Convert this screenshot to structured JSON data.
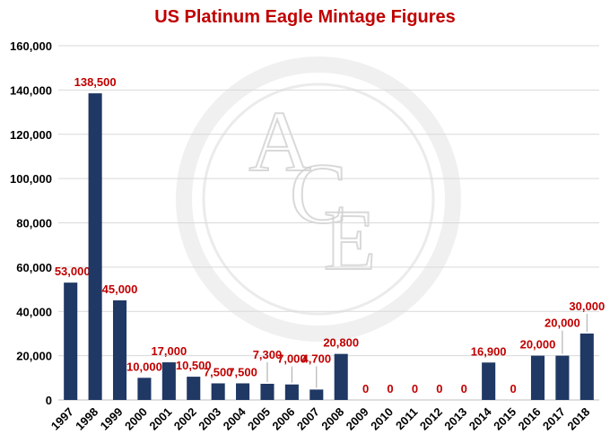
{
  "colors": {
    "bar": "#1f3864",
    "label": "#c00000",
    "title": "#c00000",
    "axis_text": "#000000",
    "grid": "#d9d9d9",
    "watermark": "#e3e3e3"
  },
  "watermark": {
    "text": "ACE"
  },
  "chart_data": {
    "type": "bar",
    "title": "US Platinum Eagle Mintage Figures",
    "xlabel": "",
    "ylabel": "",
    "ylim": [
      0,
      160000
    ],
    "yticks": [
      0,
      20000,
      40000,
      60000,
      80000,
      100000,
      120000,
      140000,
      160000
    ],
    "ytick_labels": [
      "0",
      "20,000",
      "40,000",
      "60,000",
      "80,000",
      "100,000",
      "120,000",
      "140,000",
      "160,000"
    ],
    "grid": true,
    "legend": "none",
    "categories": [
      "1997",
      "1998",
      "1999",
      "2000",
      "2001",
      "2002",
      "2003",
      "2004",
      "2005",
      "2006",
      "2007",
      "2008",
      "2009",
      "2010",
      "2011",
      "2012",
      "2013",
      "2014",
      "2015",
      "2016",
      "2017",
      "2018"
    ],
    "values": [
      53000,
      138500,
      45000,
      10000,
      17000,
      10500,
      7500,
      7500,
      7300,
      7000,
      4700,
      20800,
      0,
      0,
      0,
      0,
      0,
      16900,
      0,
      20000,
      20000,
      30000
    ],
    "data_labels": [
      "53,000",
      "138,500",
      "45,000",
      "10,000",
      "17,000",
      "10,500",
      "7,500",
      "7,500",
      "7,300",
      "7,000",
      "4,700",
      "20,800",
      "0",
      "0",
      "0",
      "0",
      "0",
      "16,900",
      "0",
      "20,000",
      "20,000",
      "30,000"
    ]
  }
}
